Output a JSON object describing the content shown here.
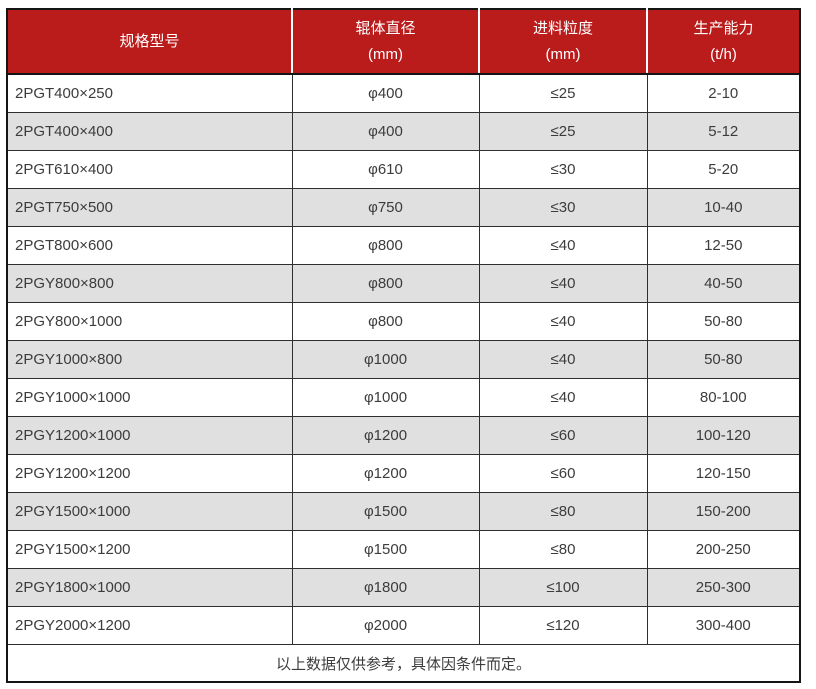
{
  "table": {
    "columns": [
      {
        "key": "model",
        "lines": [
          "规格型号"
        ]
      },
      {
        "key": "diameter",
        "lines": [
          "辊体直径",
          "(mm)"
        ]
      },
      {
        "key": "feed",
        "lines": [
          "进料粒度",
          "(mm)"
        ]
      },
      {
        "key": "capacity",
        "lines": [
          "生产能力",
          "(t/h)"
        ]
      }
    ],
    "rows": [
      [
        "2PGT400×250",
        "φ400",
        "≤25",
        "2-10"
      ],
      [
        "2PGT400×400",
        "φ400",
        "≤25",
        "5-12"
      ],
      [
        "2PGT610×400",
        "φ610",
        "≤30",
        "5-20"
      ],
      [
        "2PGT750×500",
        "φ750",
        "≤30",
        "10-40"
      ],
      [
        "2PGT800×600",
        "φ800",
        "≤40",
        "12-50"
      ],
      [
        "2PGY800×800",
        "φ800",
        "≤40",
        "40-50"
      ],
      [
        "2PGY800×1000",
        "φ800",
        "≤40",
        "50-80"
      ],
      [
        "2PGY1000×800",
        "φ1000",
        "≤40",
        "50-80"
      ],
      [
        "2PGY1000×1000",
        "φ1000",
        "≤40",
        "80-100"
      ],
      [
        "2PGY1200×1000",
        "φ1200",
        "≤60",
        "100-120"
      ],
      [
        "2PGY1200×1200",
        "φ1200",
        "≤60",
        "120-150"
      ],
      [
        "2PGY1500×1000",
        "φ1500",
        "≤80",
        "150-200"
      ],
      [
        "2PGY1500×1200",
        "φ1500",
        "≤80",
        "200-250"
      ],
      [
        "2PGY1800×1000",
        "φ1800",
        "≤100",
        "250-300"
      ],
      [
        "2PGY2000×1200",
        "φ2000",
        "≤120",
        "300-400"
      ]
    ],
    "footnote": "以上数据仅供参考，具体因条件而定。"
  },
  "colors": {
    "header_bg": "#ba1b1b",
    "header_text": "#ffffff",
    "row_bg": "#ffffff",
    "row_alt_bg": "#e0e0e0",
    "border_outer": "#151515",
    "border_inner": "#2e2e2e",
    "text": "#3c3c3c"
  }
}
